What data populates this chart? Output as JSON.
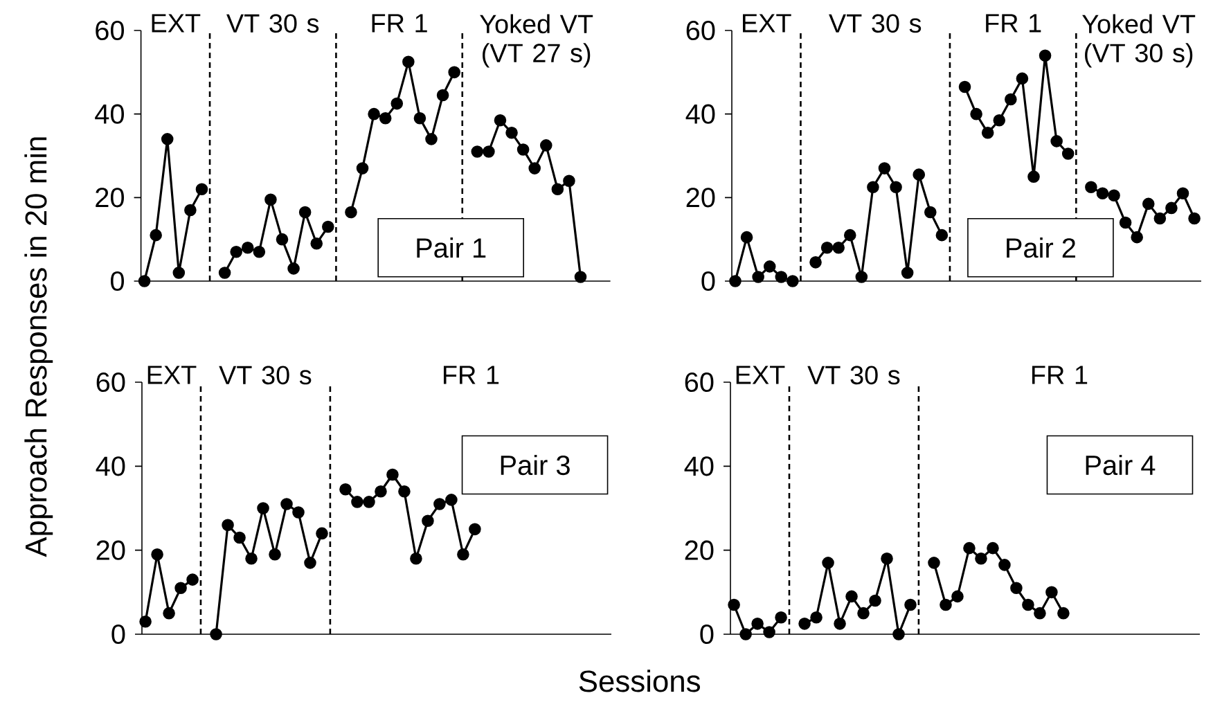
{
  "chart_data": [
    {
      "type": "line",
      "ylabel": "Approach Responses in 20 min",
      "categories": [
        null,
        null,
        null,
        null,
        null,
        null,
        null,
        null,
        null,
        null,
        null,
        null,
        null,
        null,
        null,
        null,
        null,
        null,
        null,
        null,
        null,
        null,
        null,
        null,
        null,
        null,
        null,
        null,
        null,
        null,
        null,
        null,
        null,
        null,
        null,
        null,
        null,
        null,
        null,
        null,
        null
      ],
      "values": [
        0,
        11,
        34,
        2,
        17,
        22,
        null,
        2,
        7,
        8,
        7,
        19.5,
        10,
        3,
        16.5,
        9,
        13,
        null,
        16.5,
        27,
        40,
        39,
        42.5,
        52.5,
        39,
        34,
        44.5,
        50,
        null,
        31,
        31,
        38.5,
        35.5,
        31.5,
        27,
        32.5,
        22,
        24,
        1,
        null,
        null
      ],
      "color": "#000000",
      "marker": "circle",
      "ylim": [
        0,
        60
      ],
      "yticks": [
        0,
        20,
        40,
        60
      ],
      "annotations": [
        "EXT",
        "VT 30 s",
        "FR 1",
        "Yoked VT (VT 27 s)",
        "Pair 1"
      ]
    },
    {
      "type": "line",
      "categories": [
        null,
        null,
        null,
        null,
        null,
        null,
        null,
        null,
        null,
        null,
        null,
        null,
        null,
        null,
        null,
        null,
        null,
        null,
        null,
        null,
        null,
        null,
        null,
        null,
        null,
        null,
        null,
        null,
        null,
        null,
        null,
        null,
        null,
        null,
        null,
        null,
        null,
        null,
        null,
        null,
        null
      ],
      "values": [
        0,
        10.5,
        1,
        3.5,
        1,
        0,
        null,
        4.5,
        8,
        8,
        11,
        1,
        22.5,
        27,
        22.5,
        2,
        25.5,
        16.5,
        11,
        null,
        46.5,
        40,
        35.5,
        38.5,
        43.5,
        48.5,
        25,
        54,
        33.5,
        30.5,
        null,
        22.5,
        21,
        20.5,
        14,
        10.5,
        18.5,
        15,
        17.5,
        21,
        15
      ],
      "color": "#000000",
      "marker": "circle",
      "ylim": [
        0,
        60
      ],
      "yticks": [
        0,
        20,
        40,
        60
      ],
      "annotations": [
        "EXT",
        "VT 30 s",
        "FR 1",
        "Yoked VT (VT 30 s)",
        "Pair 2"
      ]
    },
    {
      "type": "line",
      "xlabel": "Sessions",
      "categories": [
        null,
        null,
        null,
        null,
        null,
        null,
        null,
        null,
        null,
        null,
        null,
        null,
        null,
        null,
        null,
        null,
        null,
        null,
        null,
        null,
        null,
        null,
        null,
        null,
        null,
        null,
        null,
        null,
        null,
        null,
        null,
        null,
        null,
        null,
        null,
        null,
        null,
        null,
        null,
        null
      ],
      "values": [
        3,
        19,
        5,
        11,
        13,
        null,
        0,
        26,
        23,
        18,
        30,
        19,
        31,
        29,
        17,
        24,
        null,
        34.5,
        31.5,
        31.5,
        34,
        38,
        34,
        18,
        27,
        31,
        32,
        19,
        25,
        null,
        null,
        null,
        null,
        null,
        null,
        null,
        null,
        null,
        null,
        null
      ],
      "color": "#000000",
      "marker": "circle",
      "ylim": [
        0,
        60
      ],
      "yticks": [
        0,
        20,
        40,
        60
      ],
      "annotations": [
        "EXT",
        "VT 30 s",
        "FR 1",
        "Pair 3"
      ]
    },
    {
      "type": "line",
      "categories": [
        null,
        null,
        null,
        null,
        null,
        null,
        null,
        null,
        null,
        null,
        null,
        null,
        null,
        null,
        null,
        null,
        null,
        null,
        null,
        null,
        null,
        null,
        null,
        null,
        null,
        null,
        null,
        null,
        null,
        null,
        null,
        null,
        null,
        null,
        null,
        null,
        null,
        null,
        null,
        null
      ],
      "values": [
        7,
        0,
        2.5,
        0.5,
        4,
        null,
        2.5,
        4,
        17,
        2.5,
        9,
        5,
        8,
        18,
        0,
        7,
        null,
        17,
        7,
        9,
        20.5,
        18,
        20.5,
        16.5,
        11,
        7,
        5,
        10,
        5,
        null,
        null,
        null,
        null,
        null,
        null,
        null,
        null,
        null,
        null,
        null
      ],
      "color": "#000000",
      "marker": "circle",
      "ylim": [
        0,
        60
      ],
      "yticks": [
        0,
        20,
        40,
        60
      ],
      "annotations": [
        "EXT",
        "VT 30 s",
        "FR 1",
        "Pair 4"
      ]
    }
  ]
}
